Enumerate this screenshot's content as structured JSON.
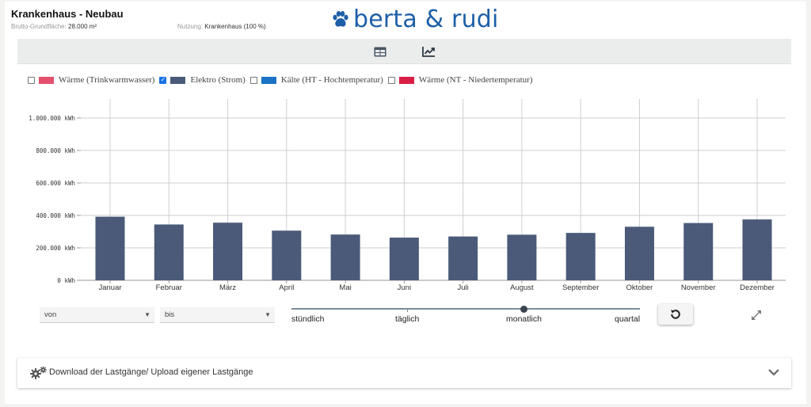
{
  "header": {
    "title": "Krankenhaus - Neubau",
    "area_label": "Brutto-Grundfläche:",
    "area_value": "28.000 m²",
    "usage_label": "Nutzung:",
    "usage_value": "Krankenhaus (100 %)",
    "logo_text": "berta & rudi",
    "logo_icon": "paw-icon",
    "logo_color": "#1d5fa7"
  },
  "toolbar": {
    "views": [
      {
        "icon": "table-icon",
        "active": false
      },
      {
        "icon": "line-chart-icon",
        "active": true
      }
    ]
  },
  "legend": [
    {
      "label": "Wärme (Trinkwarmwasser)",
      "color": "#e4506e",
      "checked": false
    },
    {
      "label": "Elektro (Strom)",
      "color": "#4a5a78",
      "checked": true
    },
    {
      "label": "Kälte (HT - Hochtemperatur)",
      "color": "#1a73c4",
      "checked": false
    },
    {
      "label": "Wärme (NT - Niedertemperatur)",
      "color": "#d81e45",
      "checked": false
    }
  ],
  "chart_data": {
    "type": "bar",
    "categories": [
      "Januar",
      "Februar",
      "März",
      "April",
      "Mai",
      "Juni",
      "Juli",
      "August",
      "September",
      "Oktober",
      "November",
      "Dezember"
    ],
    "series": [
      {
        "name": "Elektro (Strom)",
        "color": "#4a5a78",
        "values": [
          392000,
          344000,
          355000,
          306000,
          282000,
          263000,
          270000,
          281000,
          292000,
          330000,
          353000,
          375000
        ]
      }
    ],
    "ylim": [
      0,
      1000000
    ],
    "yticks": [
      "0 kWh",
      "200.000 kWh",
      "400.000 kWh",
      "600.000 kWh",
      "800.000 kWh",
      "1.000.000 kWh"
    ],
    "ytick_values": [
      0,
      200000,
      400000,
      600000,
      800000,
      1000000
    ],
    "grid": true
  },
  "controls": {
    "from_placeholder": "von",
    "to_placeholder": "bis",
    "resolution_options": [
      "stündlich",
      "täglich",
      "monatlich",
      "quartal"
    ],
    "resolution_selected": "monatlich",
    "reset_icon": "reset-icon",
    "expand_icon": "expand-icon"
  },
  "download": {
    "label": "Download der Lastgänge/ Upload eigener Lastgänge",
    "icon": "gears-icon",
    "chevron": "chevron-down-icon"
  }
}
